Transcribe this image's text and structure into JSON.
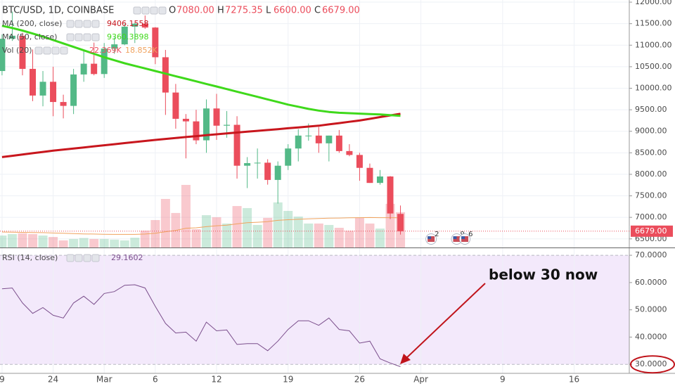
{
  "chart_data": [
    {
      "type": "candlestick",
      "header": {
        "symbol": "BTC/USD, 1D, COINBASE",
        "ohlc": [
          {
            "key": "O",
            "label": "7080.00"
          },
          {
            "key": "H",
            "label": "7275.35"
          },
          {
            "key": "L",
            "label": "6600.00"
          },
          {
            "key": "C",
            "label": "6679.00"
          }
        ]
      },
      "x": [
        0,
        1,
        2,
        3,
        4,
        5,
        6,
        7,
        8,
        9,
        10,
        11,
        12,
        13,
        14,
        15,
        16,
        17,
        18,
        19,
        20,
        21,
        22,
        23,
        24,
        25,
        26,
        27,
        28,
        29,
        30,
        31,
        32,
        33,
        34,
        35,
        36,
        37,
        38,
        39
      ],
      "open": [
        10400,
        11150,
        11220,
        10450,
        9830,
        10150,
        9680,
        9590,
        10320,
        10570,
        10330,
        10920,
        11020,
        11430,
        11500,
        11410,
        10720,
        9900,
        9290,
        9230,
        8790,
        9530,
        9130,
        9150,
        8200,
        8260,
        8270,
        7870,
        8200,
        8600,
        8900,
        8900,
        8720,
        8900,
        8540,
        8450,
        8150,
        7800,
        7950,
        7080
      ],
      "high": [
        11250,
        11780,
        11290,
        10900,
        10400,
        10500,
        9850,
        10450,
        10880,
        11060,
        11050,
        11190,
        11500,
        11520,
        11690,
        11420,
        10890,
        10100,
        9400,
        9500,
        9740,
        9870,
        9470,
        9350,
        8400,
        8600,
        8350,
        8300,
        8700,
        9050,
        9180,
        9100,
        8900,
        9030,
        8700,
        8500,
        8250,
        8100,
        7960,
        7275.35
      ],
      "low": [
        10300,
        11100,
        10300,
        9700,
        9580,
        9350,
        9300,
        9400,
        10150,
        10300,
        10240,
        10800,
        11000,
        11050,
        11380,
        10560,
        9380,
        9060,
        8370,
        8700,
        8500,
        8800,
        8850,
        7900,
        7680,
        7900,
        7760,
        7320,
        8100,
        8300,
        8780,
        8500,
        8300,
        8500,
        8420,
        7850,
        7800,
        7760,
        6960,
        6600
      ],
      "close": [
        11150,
        11220,
        10450,
        9830,
        10150,
        9680,
        9590,
        10320,
        10570,
        10330,
        10920,
        11020,
        11430,
        11500,
        11410,
        10720,
        9900,
        9290,
        9230,
        8790,
        9530,
        9130,
        9150,
        8200,
        8260,
        8270,
        7870,
        8200,
        8600,
        8900,
        8900,
        8720,
        8900,
        8540,
        8450,
        8150,
        7800,
        7950,
        7090,
        6679
      ],
      "up_color": "#53b987",
      "down_color": "#eb4d5c",
      "ylim": [
        6300,
        12050
      ],
      "yticks": [
        {
          "value": 6500,
          "label": "6500.00"
        },
        {
          "value": 7000,
          "label": "7000.00"
        },
        {
          "value": 7500,
          "label": "7500.00"
        },
        {
          "value": 8000,
          "label": "8000.00"
        },
        {
          "value": 8500,
          "label": "8500.00"
        },
        {
          "value": 9000,
          "label": "9000.00"
        },
        {
          "value": 9500,
          "label": "9500.00"
        },
        {
          "value": 10000,
          "label": "10000.00"
        },
        {
          "value": 10500,
          "label": "10500.00"
        },
        {
          "value": 11000,
          "label": "11000.00"
        },
        {
          "value": 11500,
          "label": "11500.00"
        },
        {
          "value": 12000,
          "label": "12000.00"
        }
      ],
      "grid": true,
      "price_label": {
        "value": 6679,
        "label": "6679.00"
      },
      "series": [
        {
          "name": "MA (200, close)",
          "color": "#c8161d",
          "label": "9406.1558",
          "values": [
            8400,
            8430,
            8460,
            8490,
            8520,
            8550,
            8575,
            8600,
            8625,
            8650,
            8675,
            8700,
            8725,
            8750,
            8775,
            8800,
            8822,
            8844,
            8866,
            8888,
            8910,
            8930,
            8950,
            8970,
            8990,
            9010,
            9030,
            9050,
            9070,
            9090,
            9110,
            9130,
            9160,
            9190,
            9220,
            9250,
            9290,
            9330,
            9370,
            9406.1558
          ]
        },
        {
          "name": "MA (50, close)",
          "color": "#3fd91b",
          "label": "9360.3898",
          "values": [
            11450,
            11400,
            11340,
            11270,
            11200,
            11120,
            11040,
            10960,
            10880,
            10800,
            10720,
            10650,
            10580,
            10520,
            10460,
            10400,
            10340,
            10280,
            10220,
            10160,
            10100,
            10040,
            9980,
            9920,
            9860,
            9800,
            9740,
            9680,
            9620,
            9570,
            9520,
            9480,
            9450,
            9430,
            9420,
            9410,
            9400,
            9390,
            9375,
            9360.3898
          ]
        }
      ],
      "volume": {
        "name": "Vol (20)",
        "labels": [
          "22.369K",
          "18.852K"
        ],
        "ylim": [
          0,
          157
        ],
        "ma_color": "#f0a35e",
        "values": [
          7.6,
          8.5,
          9,
          8.5,
          7.6,
          6.7,
          4.5,
          5.4,
          6,
          5.4,
          5.4,
          5,
          4.5,
          6.2,
          10.7,
          17.4,
          30.8,
          21.9,
          39.7,
          11.6,
          20.5,
          19.2,
          15.2,
          26.3,
          25,
          14.3,
          18.8,
          28.6,
          23.2,
          19.6,
          15.2,
          15.2,
          14.3,
          12.5,
          10.7,
          18.8,
          15.2,
          12,
          27.7,
          22.369
        ],
        "ma_values": [
          9.8,
          9.7,
          9.6,
          9.5,
          9.4,
          9.2,
          9.0,
          8.8,
          8.6,
          8.5,
          8.4,
          8.3,
          8.3,
          8.3,
          8.5,
          9.0,
          10.0,
          10.8,
          12.2,
          12.5,
          13.2,
          13.8,
          14.2,
          15.0,
          15.7,
          16.0,
          16.4,
          17.2,
          17.6,
          17.9,
          18.2,
          18.4,
          18.6,
          18.7,
          18.8,
          18.9,
          19.0,
          18.9,
          18.9,
          18.852
        ]
      },
      "events": [
        {
          "x": 42,
          "label": "2"
        },
        {
          "x": 44.5,
          "label": "9"
        },
        {
          "x": 45.3,
          "label": "6"
        }
      ],
      "xlim": [
        -0.2,
        61.4
      ]
    },
    {
      "type": "line",
      "title": "RSI (14, close)",
      "value_label": "29.1602",
      "color": "#7b4f8c",
      "x": [
        0,
        1,
        2,
        3,
        4,
        5,
        6,
        7,
        8,
        9,
        10,
        11,
        12,
        13,
        14,
        15,
        16,
        17,
        18,
        19,
        20,
        21,
        22,
        23,
        24,
        25,
        26,
        27,
        28,
        29,
        30,
        31,
        32,
        33,
        34,
        35,
        36,
        37,
        38,
        39
      ],
      "values": [
        57.7,
        58.0,
        52.5,
        48.7,
        50.8,
        48.0,
        47.0,
        52.5,
        55.0,
        52.0,
        56.0,
        56.7,
        59.0,
        59.2,
        58.0,
        51.3,
        45.0,
        41.5,
        41.8,
        38.5,
        45.5,
        42.3,
        42.6,
        37.3,
        37.6,
        37.6,
        35.0,
        38.5,
        42.8,
        46.0,
        46.0,
        44.3,
        47.0,
        42.8,
        42.3,
        37.8,
        38.5,
        32.0,
        30.5,
        29.1602
      ],
      "ylim": [
        26.7,
        72.6
      ],
      "yticks": [
        {
          "value": 30,
          "label": "30.0000"
        },
        {
          "value": 40,
          "label": "40.0000"
        },
        {
          "value": 50,
          "label": "50.0000"
        },
        {
          "value": 60,
          "label": "60.0000"
        },
        {
          "value": 70,
          "label": "70.0000"
        }
      ],
      "xlim": [
        -0.2,
        61.4
      ],
      "xticks": [
        {
          "value": 0,
          "label": "9"
        },
        {
          "value": 5,
          "label": "24"
        },
        {
          "value": 10,
          "label": "Mar"
        },
        {
          "value": 15,
          "label": "6"
        },
        {
          "value": 21,
          "label": "12"
        },
        {
          "value": 28,
          "label": "19"
        },
        {
          "value": 35,
          "label": "26"
        },
        {
          "value": 41,
          "label": "Apr"
        },
        {
          "value": 49,
          "label": "9"
        },
        {
          "value": 56,
          "label": "16"
        }
      ],
      "annotation": "below 30 now"
    }
  ]
}
